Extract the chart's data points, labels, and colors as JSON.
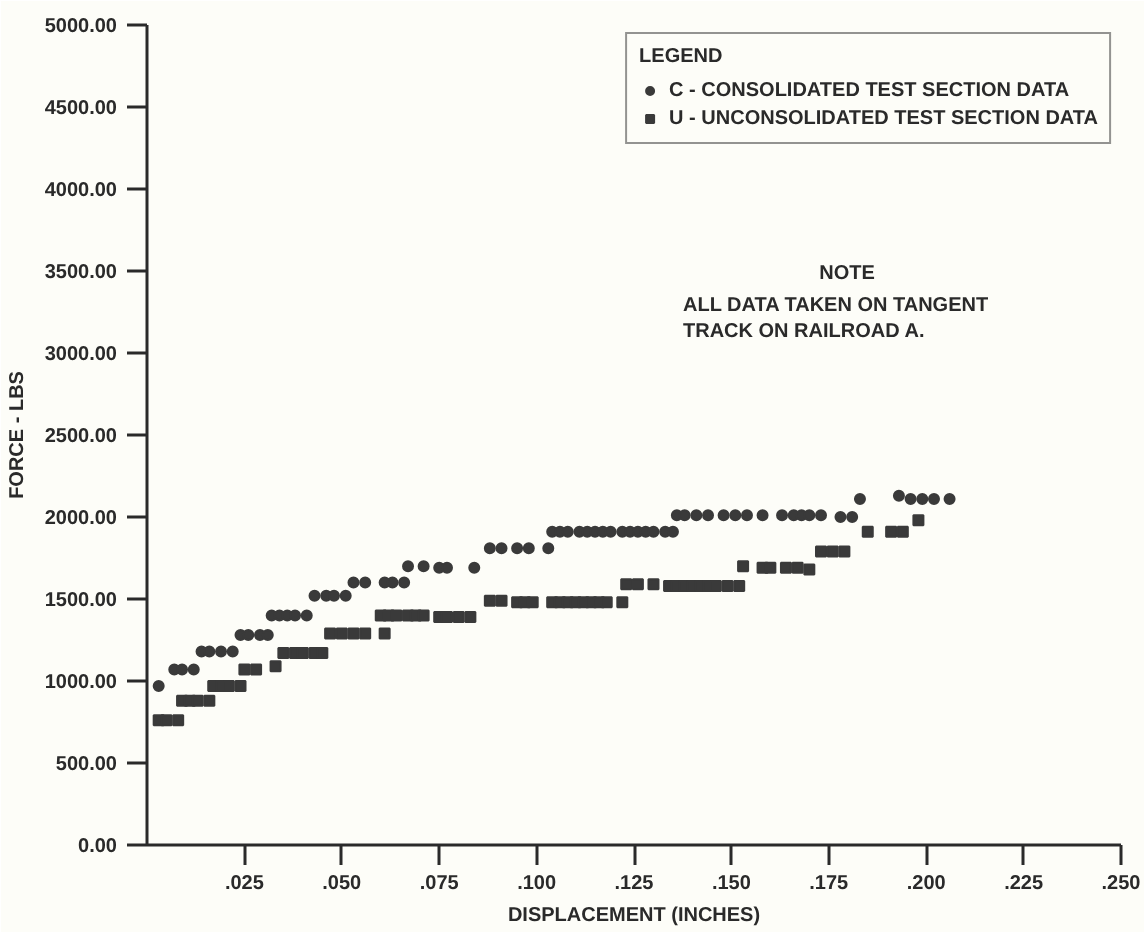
{
  "chart_data": {
    "type": "scatter",
    "xlabel": "DISPLACEMENT (INCHES)",
    "ylabel": "FORCE - LBS",
    "legend_title": "LEGEND",
    "legend": "top right",
    "grid": false,
    "annotations": [
      "NOTE",
      "ALL DATA TAKEN ON TANGENT TRACK ON RAILROAD A."
    ],
    "xlim": [
      0,
      0.25
    ],
    "xticks": [
      {
        "value": 0.025,
        "label": ".025"
      },
      {
        "value": 0.05,
        "label": ".050"
      },
      {
        "value": 0.075,
        "label": ".075"
      },
      {
        "value": 0.1,
        "label": ".100"
      },
      {
        "value": 0.125,
        "label": ".125"
      },
      {
        "value": 0.15,
        "label": ".150"
      },
      {
        "value": 0.175,
        "label": ".175"
      },
      {
        "value": 0.2,
        "label": ".200"
      },
      {
        "value": 0.225,
        "label": ".225"
      },
      {
        "value": 0.25,
        "label": ".250"
      }
    ],
    "ylim": [
      0,
      5000
    ],
    "yticks": [
      {
        "value": 0,
        "label": "0.00"
      },
      {
        "value": 500,
        "label": "500.00"
      },
      {
        "value": 1000,
        "label": "1000.00"
      },
      {
        "value": 1500,
        "label": "1500.00"
      },
      {
        "value": 2000,
        "label": "2000.00"
      },
      {
        "value": 2500,
        "label": "2500.00"
      },
      {
        "value": 3000,
        "label": "3000.00"
      },
      {
        "value": 3500,
        "label": "3500.00"
      },
      {
        "value": 4000,
        "label": "4000.00"
      },
      {
        "value": 4500,
        "label": "4500.00"
      },
      {
        "value": 5000,
        "label": "5000.00"
      }
    ],
    "series": [
      {
        "name": "C - CONSOLIDATED TEST SECTION DATA",
        "color": "#3a3a3a",
        "marker": "circle",
        "x": [
          0.003,
          0.007,
          0.009,
          0.012,
          0.014,
          0.016,
          0.019,
          0.022,
          0.024,
          0.026,
          0.029,
          0.031,
          0.032,
          0.034,
          0.036,
          0.038,
          0.041,
          0.043,
          0.046,
          0.048,
          0.051,
          0.053,
          0.056,
          0.061,
          0.063,
          0.066,
          0.067,
          0.071,
          0.075,
          0.077,
          0.084,
          0.088,
          0.091,
          0.095,
          0.098,
          0.103,
          0.104,
          0.106,
          0.108,
          0.111,
          0.113,
          0.115,
          0.117,
          0.119,
          0.122,
          0.124,
          0.126,
          0.128,
          0.13,
          0.133,
          0.135,
          0.136,
          0.138,
          0.141,
          0.144,
          0.148,
          0.151,
          0.154,
          0.158,
          0.163,
          0.166,
          0.168,
          0.17,
          0.173,
          0.178,
          0.181,
          0.183,
          0.193,
          0.196,
          0.199,
          0.202,
          0.206
        ],
        "values": [
          970,
          1070,
          1070,
          1070,
          1180,
          1180,
          1180,
          1180,
          1280,
          1280,
          1280,
          1280,
          1400,
          1400,
          1400,
          1400,
          1400,
          1520,
          1520,
          1520,
          1520,
          1600,
          1600,
          1600,
          1600,
          1600,
          1700,
          1700,
          1690,
          1690,
          1690,
          1810,
          1810,
          1810,
          1810,
          1810,
          1910,
          1910,
          1910,
          1910,
          1910,
          1910,
          1910,
          1910,
          1910,
          1910,
          1910,
          1910,
          1910,
          1910,
          1910,
          2010,
          2010,
          2010,
          2010,
          2010,
          2010,
          2010,
          2010,
          2010,
          2010,
          2010,
          2010,
          2010,
          2000,
          2000,
          2110,
          2130,
          2110,
          2110,
          2110,
          2110
        ]
      },
      {
        "name": "U - UNCONSOLIDATED TEST SECTION DATA",
        "color": "#3a3a3a",
        "marker": "square",
        "x": [
          0.003,
          0.005,
          0.008,
          0.009,
          0.011,
          0.013,
          0.016,
          0.017,
          0.019,
          0.021,
          0.024,
          0.025,
          0.028,
          0.033,
          0.035,
          0.038,
          0.04,
          0.043,
          0.045,
          0.047,
          0.05,
          0.053,
          0.056,
          0.061,
          0.06,
          0.062,
          0.064,
          0.067,
          0.069,
          0.071,
          0.075,
          0.077,
          0.08,
          0.083,
          0.088,
          0.091,
          0.095,
          0.097,
          0.099,
          0.104,
          0.106,
          0.108,
          0.11,
          0.112,
          0.114,
          0.116,
          0.118,
          0.122,
          0.123,
          0.126,
          0.13,
          0.134,
          0.136,
          0.138,
          0.14,
          0.142,
          0.144,
          0.146,
          0.149,
          0.152,
          0.153,
          0.158,
          0.16,
          0.164,
          0.167,
          0.17,
          0.173,
          0.176,
          0.179,
          0.185,
          0.191,
          0.194,
          0.198
        ],
        "values": [
          760,
          760,
          760,
          880,
          880,
          880,
          880,
          970,
          970,
          970,
          970,
          1070,
          1070,
          1090,
          1170,
          1170,
          1170,
          1170,
          1170,
          1290,
          1290,
          1290,
          1290,
          1290,
          1400,
          1400,
          1400,
          1400,
          1400,
          1400,
          1390,
          1390,
          1390,
          1390,
          1490,
          1490,
          1480,
          1480,
          1480,
          1480,
          1480,
          1480,
          1480,
          1480,
          1480,
          1480,
          1480,
          1480,
          1590,
          1590,
          1590,
          1580,
          1580,
          1580,
          1580,
          1580,
          1580,
          1580,
          1580,
          1580,
          1700,
          1690,
          1690,
          1690,
          1690,
          1680,
          1790,
          1790,
          1790,
          1910,
          1910,
          1910,
          1980
        ]
      }
    ]
  }
}
